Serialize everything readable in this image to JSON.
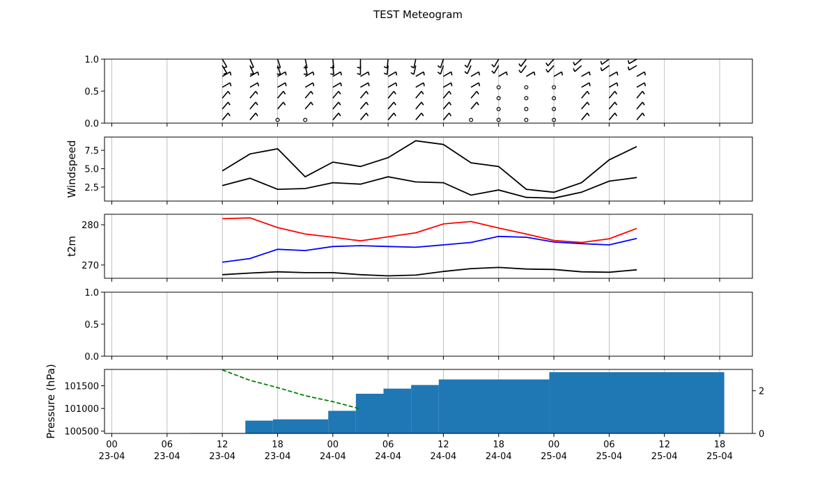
{
  "chart_data": {
    "title": "TEST Meteogram",
    "x_tick_labels": [
      {
        "time": "00",
        "date": "23-04"
      },
      {
        "time": "06",
        "date": "23-04"
      },
      {
        "time": "12",
        "date": "23-04"
      },
      {
        "time": "18",
        "date": "23-04"
      },
      {
        "time": "00",
        "date": "24-04"
      },
      {
        "time": "06",
        "date": "24-04"
      },
      {
        "time": "12",
        "date": "24-04"
      },
      {
        "time": "18",
        "date": "24-04"
      },
      {
        "time": "00",
        "date": "25-04"
      },
      {
        "time": "06",
        "date": "25-04"
      },
      {
        "time": "12",
        "date": "25-04"
      },
      {
        "time": "18",
        "date": "25-04"
      }
    ],
    "panels": [
      {
        "type": "barbs",
        "ylabel": "",
        "ylim": [
          0,
          1
        ],
        "yticks": [
          "0.0",
          "0.5",
          "1.0"
        ],
        "times": [
          "23-04 12:00",
          "23-04 15:00",
          "23-04 18:00",
          "23-04 21:00",
          "24-04 00:00",
          "24-04 03:00",
          "24-04 06:00",
          "24-04 09:00",
          "24-04 12:00",
          "24-04 15:00",
          "24-04 18:00",
          "24-04 21:00",
          "25-04 00:00",
          "25-04 03:00",
          "25-04 06:00",
          "25-04 09:00"
        ],
        "levels": [
          0.05,
          0.22,
          0.39,
          0.56,
          0.73,
          0.9,
          1.0
        ]
      },
      {
        "type": "line",
        "ylabel": "Windspeed",
        "ylim": [
          0.6,
          9.3
        ],
        "yticks": [
          "2.5",
          "5.0",
          "7.5"
        ],
        "x": [
          "23-04 12:00",
          "23-04 15:00",
          "23-04 18:00",
          "23-04 21:00",
          "24-04 00:00",
          "24-04 03:00",
          "24-04 06:00",
          "24-04 09:00",
          "24-04 12:00",
          "24-04 15:00",
          "24-04 18:00",
          "24-04 21:00",
          "25-04 00:00",
          "25-04 03:00",
          "25-04 06:00",
          "25-04 09:00"
        ],
        "series": [
          {
            "color": "#000000",
            "values": [
              4.7,
              7.0,
              7.7,
              3.9,
              5.9,
              5.3,
              6.5,
              8.8,
              8.3,
              5.8,
              5.3,
              2.2,
              1.8,
              3.1,
              6.2,
              8.0
            ]
          },
          {
            "color": "#000000",
            "values": [
              2.7,
              3.7,
              2.2,
              2.3,
              3.1,
              2.9,
              3.9,
              3.2,
              3.1,
              1.4,
              2.1,
              1.1,
              1.0,
              1.8,
              3.3,
              3.8
            ]
          }
        ]
      },
      {
        "type": "line",
        "ylabel": "t2m",
        "ylim": [
          266.7,
          282.6
        ],
        "yticks": [
          "270",
          "280"
        ],
        "x": [
          "23-04 12:00",
          "23-04 15:00",
          "23-04 18:00",
          "23-04 21:00",
          "24-04 00:00",
          "24-04 03:00",
          "24-04 06:00",
          "24-04 09:00",
          "24-04 12:00",
          "24-04 15:00",
          "24-04 18:00",
          "24-04 21:00",
          "25-04 00:00",
          "25-04 03:00",
          "25-04 06:00",
          "25-04 09:00"
        ],
        "series": [
          {
            "color": "#ff0000",
            "values": [
              281.5,
              281.7,
              279.3,
              277.7,
              276.9,
              276.0,
              277.0,
              278.0,
              280.2,
              280.8,
              279.2,
              277.7,
              276.1,
              275.6,
              276.5,
              279.1
            ]
          },
          {
            "color": "#0000ff",
            "values": [
              270.7,
              271.6,
              273.9,
              273.6,
              274.6,
              274.8,
              274.6,
              274.4,
              275.0,
              275.6,
              277.1,
              276.9,
              275.7,
              275.3,
              275.0,
              276.6
            ]
          },
          {
            "color": "#000000",
            "values": [
              267.6,
              268.0,
              268.3,
              268.1,
              268.1,
              267.6,
              267.3,
              267.5,
              268.4,
              269.1,
              269.4,
              269.0,
              268.9,
              268.3,
              268.2,
              268.8
            ]
          }
        ]
      },
      {
        "type": "empty",
        "ylabel": "",
        "ylim": [
          0,
          1
        ],
        "yticks": [
          "0.0",
          "0.5",
          "1.0"
        ]
      },
      {
        "type": "pressure_precip",
        "ylabel": "Pressure (hPa)",
        "ylim": [
          100450,
          101860
        ],
        "yticks": [
          "100500",
          "101000",
          "101500"
        ],
        "pressure": {
          "color": "#008000",
          "style": "dashed",
          "x": [
            "23-04 12:00",
            "23-04 15:00",
            "23-04 18:00",
            "23-04 21:00",
            "24-04 00:00",
            "24-04 03:00"
          ],
          "values": [
            101850,
            101620,
            101460,
            101280,
            101150,
            100990
          ]
        },
        "precip": {
          "color": "#1f77b4",
          "ylim_right": [
            0,
            3.0
          ],
          "yticks_right": [
            "0",
            "2"
          ],
          "steps": [
            {
              "start": "23-04 08:30",
              "end": "23-04 14:30",
              "value": 0.02
            },
            {
              "start": "23-04 14:30",
              "end": "23-04 17:30",
              "value": 0.6
            },
            {
              "start": "23-04 17:30",
              "end": "23-04 23:30",
              "value": 0.66
            },
            {
              "start": "23-04 23:30",
              "end": "24-04 02:30",
              "value": 1.06
            },
            {
              "start": "24-04 02:30",
              "end": "24-04 05:30",
              "value": 1.86
            },
            {
              "start": "24-04 05:30",
              "end": "24-04 08:30",
              "value": 2.1
            },
            {
              "start": "24-04 08:30",
              "end": "24-04 11:30",
              "value": 2.27
            },
            {
              "start": "24-04 11:30",
              "end": "24-04 23:30",
              "value": 2.53
            },
            {
              "start": "24-04 23:30",
              "end": "25-04 18:30",
              "value": 2.87
            }
          ]
        }
      }
    ]
  }
}
